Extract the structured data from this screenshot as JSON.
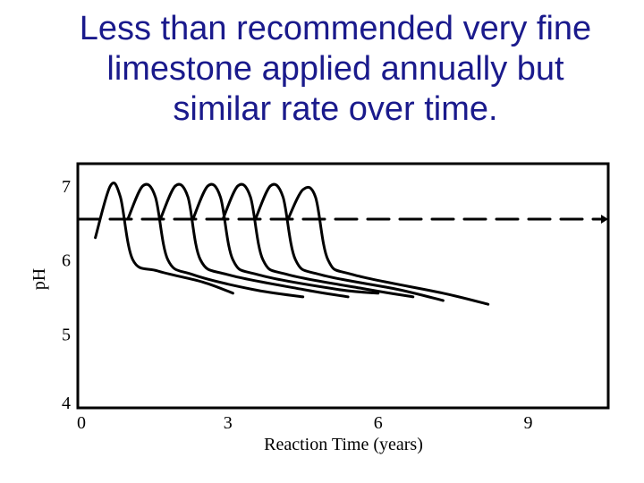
{
  "slide": {
    "title_lines": [
      "Less than recommended very fine",
      "limestone applied annually but",
      "similar rate over time."
    ]
  },
  "colors": {
    "title": "#1a1a8c",
    "line": "#000000",
    "background": "#ffffff"
  },
  "chart_data": {
    "type": "line",
    "title": "Less than recommended very fine limestone applied annually but similar rate over time.",
    "xlabel": "Reaction Time  (years)",
    "ylabel": "pH",
    "xlim": [
      0,
      10.6
    ],
    "ylim": [
      4,
      7.3
    ],
    "x_ticks": [
      0,
      3,
      6,
      9
    ],
    "x_tick_labels": [
      "0",
      "3",
      "6",
      "9"
    ],
    "y_ticks": [
      4,
      5,
      6,
      7
    ],
    "y_tick_labels": [
      "4",
      "5",
      "6",
      "7"
    ],
    "grid": false,
    "legend": "none",
    "series": [
      {
        "style": "solid",
        "values": [
          {
            "x": 0.35,
            "y": 6.3
          },
          {
            "x": 0.65,
            "y": 7.0
          },
          {
            "x": 0.85,
            "y": 6.85
          },
          {
            "x": 1.1,
            "y": 6.0
          },
          {
            "x": 1.6,
            "y": 5.85
          },
          {
            "x": 2.5,
            "y": 5.7
          },
          {
            "x": 3.1,
            "y": 5.55
          }
        ]
      },
      {
        "style": "solid",
        "values": [
          {
            "x": 1.0,
            "y": 6.55
          },
          {
            "x": 1.3,
            "y": 7.0
          },
          {
            "x": 1.55,
            "y": 6.85
          },
          {
            "x": 1.8,
            "y": 6.0
          },
          {
            "x": 2.3,
            "y": 5.8
          },
          {
            "x": 3.5,
            "y": 5.6
          },
          {
            "x": 4.5,
            "y": 5.5
          }
        ]
      },
      {
        "style": "solid",
        "values": [
          {
            "x": 1.65,
            "y": 6.55
          },
          {
            "x": 1.95,
            "y": 7.0
          },
          {
            "x": 2.2,
            "y": 6.85
          },
          {
            "x": 2.45,
            "y": 6.0
          },
          {
            "x": 3.0,
            "y": 5.8
          },
          {
            "x": 4.5,
            "y": 5.6
          },
          {
            "x": 5.4,
            "y": 5.5
          }
        ]
      },
      {
        "style": "solid",
        "values": [
          {
            "x": 2.3,
            "y": 6.55
          },
          {
            "x": 2.6,
            "y": 7.0
          },
          {
            "x": 2.85,
            "y": 6.85
          },
          {
            "x": 3.1,
            "y": 6.0
          },
          {
            "x": 3.6,
            "y": 5.8
          },
          {
            "x": 5.2,
            "y": 5.6
          },
          {
            "x": 6.0,
            "y": 5.55
          }
        ]
      },
      {
        "style": "solid",
        "values": [
          {
            "x": 2.9,
            "y": 6.55
          },
          {
            "x": 3.2,
            "y": 7.0
          },
          {
            "x": 3.45,
            "y": 6.85
          },
          {
            "x": 3.7,
            "y": 6.0
          },
          {
            "x": 4.2,
            "y": 5.8
          },
          {
            "x": 5.8,
            "y": 5.6
          },
          {
            "x": 6.7,
            "y": 5.5
          }
        ]
      },
      {
        "style": "solid",
        "values": [
          {
            "x": 3.55,
            "y": 6.55
          },
          {
            "x": 3.85,
            "y": 7.0
          },
          {
            "x": 4.1,
            "y": 6.85
          },
          {
            "x": 4.35,
            "y": 6.0
          },
          {
            "x": 4.85,
            "y": 5.8
          },
          {
            "x": 6.4,
            "y": 5.6
          },
          {
            "x": 7.3,
            "y": 5.45
          }
        ]
      },
      {
        "style": "solid",
        "values": [
          {
            "x": 4.2,
            "y": 6.55
          },
          {
            "x": 4.5,
            "y": 6.95
          },
          {
            "x": 4.75,
            "y": 6.85
          },
          {
            "x": 5.0,
            "y": 6.0
          },
          {
            "x": 5.5,
            "y": 5.8
          },
          {
            "x": 7.3,
            "y": 5.55
          },
          {
            "x": 8.2,
            "y": 5.4
          }
        ]
      },
      {
        "style": "dashed",
        "values": [
          {
            "x": 0.0,
            "y": 6.55
          },
          {
            "x": 10.6,
            "y": 6.55
          }
        ]
      }
    ]
  }
}
